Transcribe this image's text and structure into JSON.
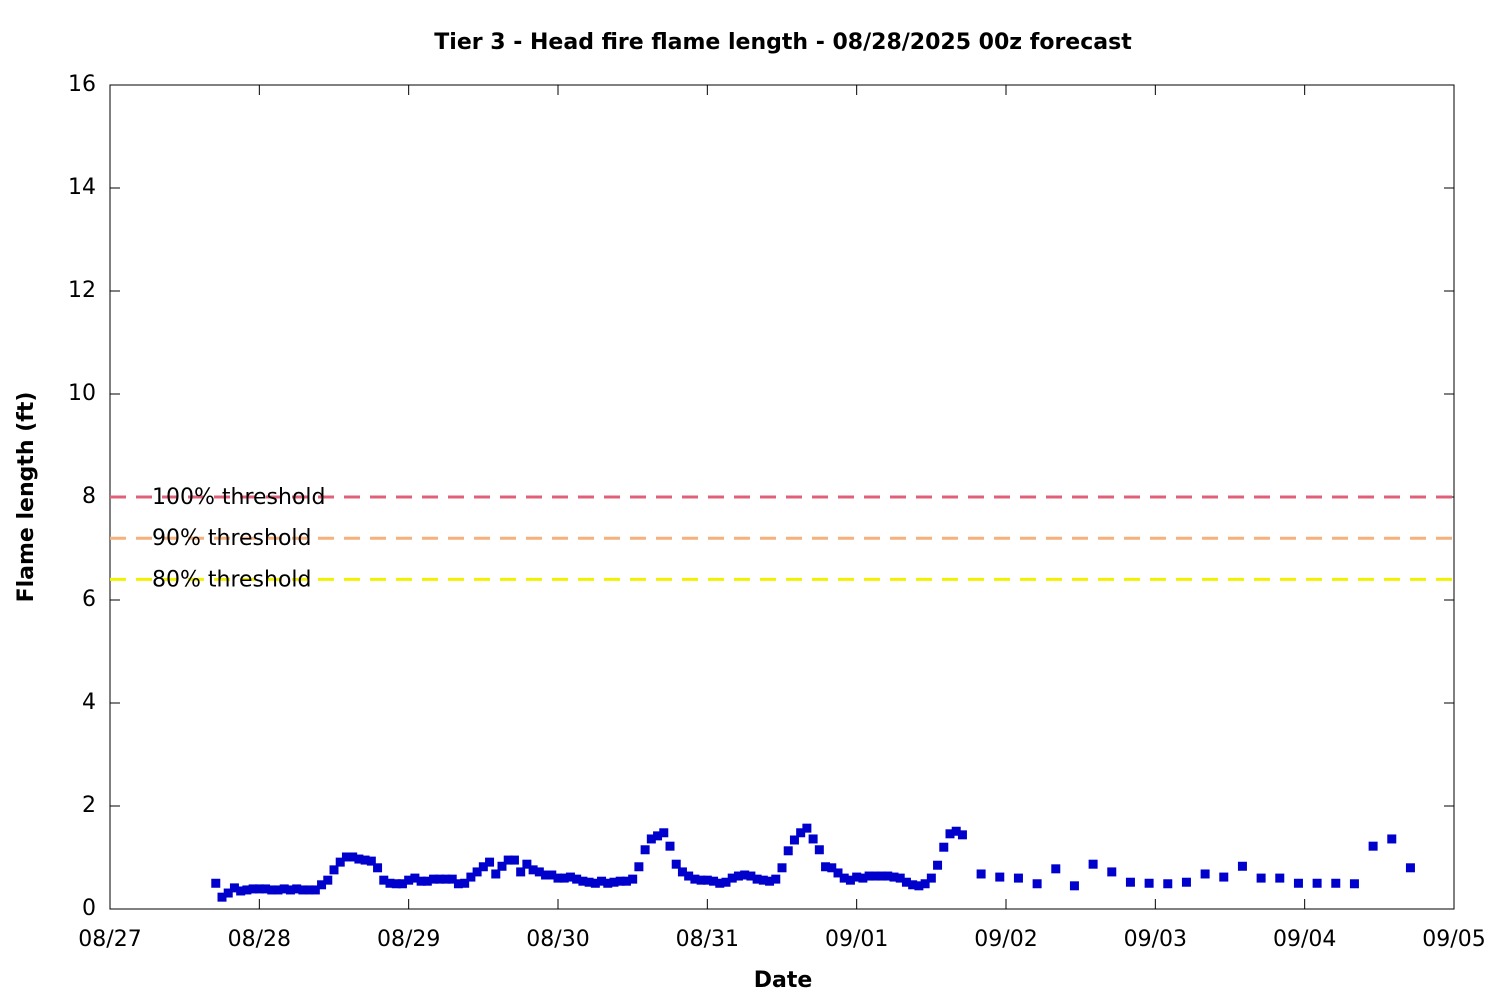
{
  "chart_data": {
    "type": "scatter",
    "title": "Tier 3 - Head fire flame length - 08/28/2025 00z forecast",
    "x_label": "Date",
    "y_label": "Flame length (ft)",
    "xlim": [
      0,
      216
    ],
    "ylim": [
      0,
      16
    ],
    "xticks": [
      {
        "value": 0,
        "label": "08/27"
      },
      {
        "value": 24,
        "label": "08/28"
      },
      {
        "value": 48,
        "label": "08/29"
      },
      {
        "value": 72,
        "label": "08/30"
      },
      {
        "value": 96,
        "label": "08/31"
      },
      {
        "value": 120,
        "label": "09/01"
      },
      {
        "value": 144,
        "label": "09/02"
      },
      {
        "value": 168,
        "label": "09/03"
      },
      {
        "value": 192,
        "label": "09/04"
      },
      {
        "value": 216,
        "label": "09/05"
      }
    ],
    "yticks": [
      0,
      2,
      4,
      6,
      8,
      10,
      12,
      14,
      16
    ],
    "grid": false,
    "reference_lines": [
      {
        "label": "100% threshold",
        "value": 8,
        "color": "#e0607a"
      },
      {
        "label": "90% threshold",
        "value": 7.2,
        "color": "#f5b07c"
      },
      {
        "label": "80% threshold",
        "value": 6.4,
        "color": "#f2f200"
      }
    ],
    "series": [
      {
        "color": "#0000cc",
        "x": [
          17,
          18,
          19,
          20,
          21,
          22,
          23,
          24,
          25,
          26,
          27,
          28,
          29,
          30,
          31,
          32,
          33,
          34,
          35,
          36,
          37,
          38,
          39,
          40,
          41,
          42,
          43,
          44,
          45,
          46,
          47,
          48,
          49,
          50,
          51,
          52,
          53,
          54,
          55,
          56,
          57,
          58,
          59,
          60,
          61,
          62,
          63,
          64,
          65,
          66,
          67,
          68,
          69,
          70,
          71,
          72,
          73,
          74,
          75,
          76,
          77,
          78,
          79,
          80,
          81,
          82,
          83,
          84,
          85,
          86,
          87,
          88,
          89,
          90,
          91,
          92,
          93,
          94,
          95,
          96,
          97,
          98,
          99,
          100,
          101,
          102,
          103,
          104,
          105,
          106,
          107,
          108,
          109,
          110,
          111,
          112,
          113,
          114,
          115,
          116,
          117,
          118,
          119,
          120,
          121,
          122,
          123,
          124,
          125,
          126,
          127,
          128,
          129,
          130,
          131,
          132,
          133,
          134,
          135,
          136,
          137,
          140,
          143,
          146,
          149,
          152,
          155,
          158,
          161,
          164,
          167,
          170,
          173,
          176,
          179,
          182,
          185,
          188,
          191,
          194,
          197,
          200,
          203,
          206,
          209
        ],
        "values": [
          0.5,
          0.23,
          0.31,
          0.41,
          0.35,
          0.37,
          0.39,
          0.39,
          0.39,
          0.37,
          0.37,
          0.39,
          0.37,
          0.39,
          0.37,
          0.37,
          0.37,
          0.47,
          0.56,
          0.76,
          0.91,
          1.01,
          1.01,
          0.97,
          0.95,
          0.93,
          0.8,
          0.56,
          0.5,
          0.49,
          0.49,
          0.56,
          0.6,
          0.54,
          0.54,
          0.58,
          0.58,
          0.58,
          0.58,
          0.49,
          0.5,
          0.62,
          0.72,
          0.82,
          0.91,
          0.68,
          0.83,
          0.95,
          0.95,
          0.72,
          0.87,
          0.76,
          0.72,
          0.66,
          0.66,
          0.6,
          0.6,
          0.62,
          0.58,
          0.54,
          0.52,
          0.5,
          0.54,
          0.5,
          0.52,
          0.54,
          0.54,
          0.58,
          0.82,
          1.15,
          1.36,
          1.42,
          1.48,
          1.22,
          0.87,
          0.72,
          0.64,
          0.58,
          0.56,
          0.56,
          0.54,
          0.5,
          0.52,
          0.6,
          0.64,
          0.66,
          0.64,
          0.58,
          0.56,
          0.54,
          0.58,
          0.8,
          1.13,
          1.34,
          1.48,
          1.57,
          1.36,
          1.15,
          0.82,
          0.8,
          0.7,
          0.6,
          0.56,
          0.62,
          0.6,
          0.64,
          0.64,
          0.64,
          0.64,
          0.62,
          0.6,
          0.52,
          0.47,
          0.45,
          0.49,
          0.6,
          0.85,
          1.2,
          1.46,
          1.51,
          1.44,
          0.68,
          0.62,
          0.6,
          0.49,
          0.78,
          0.45,
          0.87,
          0.72,
          0.52,
          0.5,
          0.49,
          0.52,
          0.68,
          0.62,
          0.83,
          0.6,
          0.6,
          0.5,
          0.5,
          0.5,
          0.49,
          1.22,
          1.36,
          0.8
        ]
      }
    ]
  }
}
